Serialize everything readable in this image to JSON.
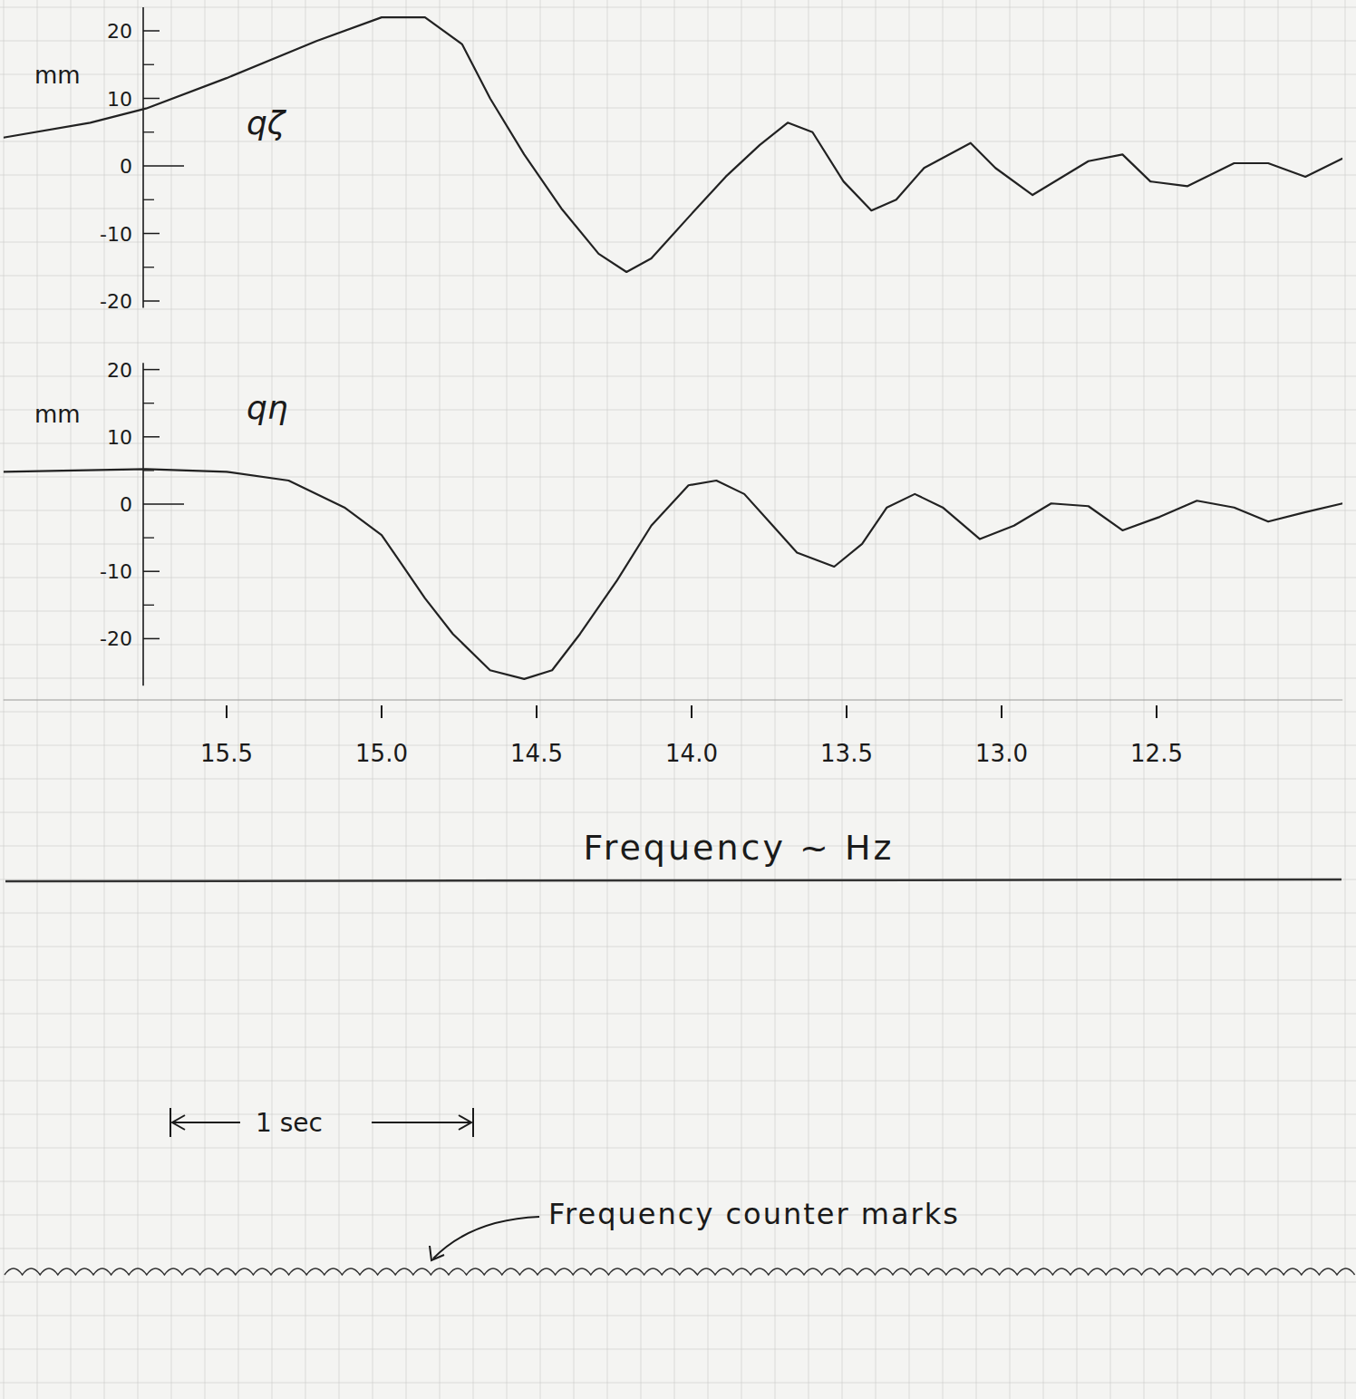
{
  "chart_data": [
    {
      "type": "line",
      "y_label": "mm",
      "xlim": [
        16.22,
        11.9
      ],
      "ylim": [
        -21,
        23.5
      ],
      "yticks": [
        20,
        10,
        0,
        -10,
        -20
      ],
      "tick_labels": "y",
      "series": [
        {
          "name": "qζ",
          "color": "#222222",
          "x": [
            16.22,
            15.94,
            15.76,
            15.5,
            15.21,
            15.0,
            14.86,
            14.74,
            14.65,
            14.54,
            14.42,
            14.3,
            14.21,
            14.13,
            14.01,
            13.89,
            13.78,
            13.69,
            13.61,
            13.51,
            13.42,
            13.34,
            13.25,
            13.1,
            13.02,
            12.9,
            12.72,
            12.61,
            12.52,
            12.4,
            12.25,
            12.14,
            12.02,
            11.9
          ],
          "values": [
            4.2,
            6.4,
            8.5,
            13,
            18.5,
            22,
            22,
            18,
            10,
            1.7,
            -6.3,
            -13,
            -15.7,
            -13.7,
            -7.6,
            -1.6,
            3.1,
            6.4,
            5,
            -2.3,
            -6.6,
            -5,
            -0.3,
            3.4,
            -0.3,
            -4.3,
            0.7,
            1.7,
            -2.3,
            -3,
            0.4,
            0.4,
            -1.6,
            1.1
          ]
        }
      ]
    },
    {
      "type": "line",
      "y_label": "mm",
      "x_label": "Frequency ~ Hz",
      "xlim": [
        16.22,
        11.9
      ],
      "ylim": [
        -27,
        21
      ],
      "xticks": [
        15.5,
        {
          "value": 15,
          "label": "15.0"
        },
        14.5,
        {
          "value": 14,
          "label": "14.0"
        },
        13.5,
        {
          "value": 13,
          "label": "13.0"
        },
        12.5
      ],
      "yticks": [
        20,
        10,
        0,
        -10,
        -20
      ],
      "annotations": [
        "1 sec",
        "Frequency counter marks"
      ],
      "series": [
        {
          "name": "qη",
          "color": "#222222",
          "x": [
            16.22,
            15.76,
            15.5,
            15.3,
            15.12,
            15.0,
            14.94,
            14.86,
            14.77,
            14.65,
            14.54,
            14.45,
            14.36,
            14.24,
            14.13,
            14.01,
            13.92,
            13.83,
            13.75,
            13.66,
            13.54,
            13.45,
            13.37,
            13.28,
            13.19,
            13.07,
            12.96,
            12.84,
            12.72,
            12.61,
            12.49,
            12.37,
            12.25,
            12.14,
            12.02,
            11.9
          ],
          "values": [
            4.8,
            5.2,
            4.8,
            3.5,
            -0.5,
            -4.6,
            -8.6,
            -14,
            -19.3,
            -24.7,
            -26,
            -24.7,
            -19.3,
            -11.3,
            -3.2,
            2.8,
            3.5,
            1.5,
            -2.6,
            -7.2,
            -9.3,
            -5.9,
            -0.5,
            1.5,
            -0.5,
            -5.2,
            -3.2,
            0.1,
            -0.3,
            -3.9,
            -1.9,
            0.5,
            -0.5,
            -2.6,
            -1.2,
            0.1
          ]
        }
      ]
    }
  ]
}
